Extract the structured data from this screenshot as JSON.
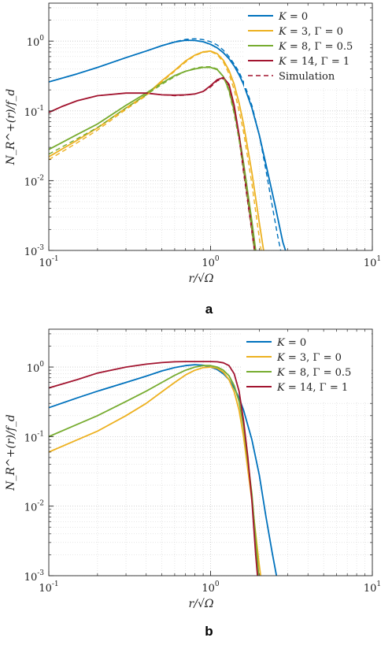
{
  "colors": {
    "K0": "#0072BD",
    "K3": "#EDB120",
    "K8": "#77AC30",
    "K14": "#A2142F"
  },
  "chart_data": [
    {
      "type": "line",
      "panel_label": "a",
      "xlabel": "r/√Ω",
      "ylabel": "N_R^+(r)/f_d",
      "xscale": "log",
      "yscale": "log",
      "xlim": [
        0.1,
        10
      ],
      "ylim": [
        0.001,
        3.5
      ],
      "xticks": [
        {
          "v": 0.1,
          "b": "10",
          "e": "-1"
        },
        {
          "v": 1,
          "b": "10",
          "e": "0"
        },
        {
          "v": 10,
          "b": "10",
          "e": "1"
        }
      ],
      "yticks": [
        {
          "v": 0.001,
          "b": "10",
          "e": "-3"
        },
        {
          "v": 0.01,
          "b": "10",
          "e": "-2"
        },
        {
          "v": 0.1,
          "b": "10",
          "e": "-1"
        },
        {
          "v": 1,
          "b": "10",
          "e": "0"
        }
      ],
      "grid": true,
      "legend": "top-right",
      "series": [
        {
          "name": "K = 0",
          "color_key": "K0",
          "dash": false,
          "x": [
            0.1,
            0.15,
            0.2,
            0.3,
            0.4,
            0.5,
            0.6,
            0.7,
            0.8,
            0.9,
            1.0,
            1.1,
            1.2,
            1.3,
            1.4,
            1.5,
            1.6,
            1.8,
            2.0,
            2.2,
            2.5,
            2.8,
            3.0
          ],
          "y": [
            0.26,
            0.34,
            0.42,
            0.58,
            0.72,
            0.86,
            0.97,
            1.03,
            1.02,
            0.98,
            0.9,
            0.8,
            0.68,
            0.56,
            0.44,
            0.33,
            0.24,
            0.11,
            0.045,
            0.017,
            0.0045,
            0.0013,
            0.0008
          ]
        },
        {
          "name": "K = 3, Γ = 0",
          "color_key": "K3",
          "dash": false,
          "x": [
            0.1,
            0.15,
            0.2,
            0.3,
            0.4,
            0.5,
            0.6,
            0.7,
            0.8,
            0.9,
            1.0,
            1.1,
            1.2,
            1.3,
            1.4,
            1.5,
            1.6,
            1.8,
            2.0,
            2.2
          ],
          "y": [
            0.022,
            0.038,
            0.057,
            0.11,
            0.17,
            0.27,
            0.38,
            0.52,
            0.63,
            0.7,
            0.72,
            0.66,
            0.53,
            0.38,
            0.24,
            0.13,
            0.065,
            0.013,
            0.0025,
            0.0006
          ]
        },
        {
          "name": "K = 8, Γ = 0.5",
          "color_key": "K8",
          "dash": false,
          "x": [
            0.1,
            0.15,
            0.2,
            0.3,
            0.4,
            0.5,
            0.6,
            0.7,
            0.8,
            0.9,
            1.0,
            1.1,
            1.2,
            1.3,
            1.4,
            1.5,
            1.6,
            1.8,
            2.0
          ],
          "y": [
            0.028,
            0.046,
            0.065,
            0.12,
            0.18,
            0.25,
            0.32,
            0.37,
            0.4,
            0.42,
            0.42,
            0.39,
            0.31,
            0.2,
            0.1,
            0.045,
            0.018,
            0.0026,
            0.0004
          ]
        },
        {
          "name": "K = 14, Γ = 1",
          "color_key": "K14",
          "dash": false,
          "x": [
            0.1,
            0.12,
            0.15,
            0.2,
            0.3,
            0.4,
            0.5,
            0.6,
            0.7,
            0.8,
            0.9,
            1.0,
            1.1,
            1.2,
            1.3,
            1.4,
            1.5,
            1.6,
            1.8,
            2.0
          ],
          "y": [
            0.095,
            0.115,
            0.14,
            0.165,
            0.18,
            0.18,
            0.17,
            0.168,
            0.17,
            0.175,
            0.19,
            0.23,
            0.28,
            0.3,
            0.24,
            0.12,
            0.045,
            0.015,
            0.002,
            0.0003
          ]
        },
        {
          "name": "Simulation",
          "color_key": "K14",
          "dash": true,
          "x": [
            0.1,
            0.12,
            0.15,
            0.2,
            0.3,
            0.4,
            0.5,
            0.6,
            0.7,
            0.8,
            0.9,
            1.0,
            1.1,
            1.2,
            1.3,
            1.4,
            1.5,
            1.6,
            1.8,
            2.0
          ],
          "y": [
            0.095,
            0.115,
            0.14,
            0.165,
            0.18,
            0.18,
            0.17,
            0.165,
            0.168,
            0.175,
            0.19,
            0.22,
            0.27,
            0.29,
            0.23,
            0.11,
            0.04,
            0.013,
            0.0018,
            0.0003
          ]
        },
        {
          "name": "",
          "color_key": "K0",
          "dash": true,
          "x": [
            0.1,
            0.15,
            0.2,
            0.3,
            0.4,
            0.5,
            0.6,
            0.7,
            0.8,
            0.9,
            1.0,
            1.1,
            1.2,
            1.3,
            1.4,
            1.5,
            1.6,
            1.8,
            2.0,
            2.2,
            2.4,
            2.6,
            2.8
          ],
          "y": [
            0.26,
            0.34,
            0.42,
            0.58,
            0.72,
            0.86,
            0.98,
            1.06,
            1.08,
            1.05,
            0.98,
            0.88,
            0.74,
            0.6,
            0.47,
            0.36,
            0.26,
            0.12,
            0.045,
            0.014,
            0.0045,
            0.0016,
            0.0007
          ]
        },
        {
          "name": "",
          "color_key": "K3",
          "dash": true,
          "x": [
            0.1,
            0.15,
            0.2,
            0.3,
            0.4,
            0.5,
            0.6,
            0.7,
            0.8,
            0.9,
            1.0,
            1.1,
            1.2,
            1.3,
            1.4,
            1.5,
            1.6,
            1.8,
            2.0,
            2.1
          ],
          "y": [
            0.02,
            0.035,
            0.053,
            0.105,
            0.165,
            0.26,
            0.37,
            0.5,
            0.62,
            0.69,
            0.71,
            0.64,
            0.5,
            0.34,
            0.2,
            0.1,
            0.05,
            0.009,
            0.0015,
            0.0007
          ]
        },
        {
          "name": "",
          "color_key": "K8",
          "dash": true,
          "x": [
            0.1,
            0.15,
            0.2,
            0.3,
            0.4,
            0.5,
            0.6,
            0.7,
            0.8,
            0.9,
            1.0,
            1.1,
            1.2,
            1.3,
            1.4,
            1.5,
            1.6,
            1.8,
            2.0
          ],
          "y": [
            0.024,
            0.04,
            0.058,
            0.11,
            0.17,
            0.24,
            0.31,
            0.37,
            0.41,
            0.43,
            0.43,
            0.4,
            0.31,
            0.19,
            0.09,
            0.038,
            0.015,
            0.002,
            0.0003
          ]
        }
      ],
      "legend_entries": [
        {
          "line": "K = ",
          "val": "0",
          "extra": "",
          "color_key": "K0",
          "dash": false
        },
        {
          "line": "K = ",
          "val": "3",
          "extra": ", Γ = 0",
          "color_key": "K3",
          "dash": false
        },
        {
          "line": "K = ",
          "val": "8",
          "extra": ", Γ = 0.5",
          "color_key": "K8",
          "dash": false
        },
        {
          "line": "K = ",
          "val": "14",
          "extra": ", Γ = 1",
          "color_key": "K14",
          "dash": false
        },
        {
          "line": "",
          "val": "Simulation",
          "extra": "",
          "color_key": "K14",
          "dash": true
        }
      ]
    },
    {
      "type": "line",
      "panel_label": "b",
      "xlabel": "r/√Ω",
      "ylabel": "N_R^+(r)/f_d",
      "xscale": "log",
      "yscale": "log",
      "xlim": [
        0.1,
        10
      ],
      "ylim": [
        0.001,
        3.5
      ],
      "xticks": [
        {
          "v": 0.1,
          "b": "10",
          "e": "-1"
        },
        {
          "v": 1,
          "b": "10",
          "e": "0"
        },
        {
          "v": 10,
          "b": "10",
          "e": "1"
        }
      ],
      "yticks": [
        {
          "v": 0.001,
          "b": "10",
          "e": "-3"
        },
        {
          "v": 0.01,
          "b": "10",
          "e": "-2"
        },
        {
          "v": 0.1,
          "b": "10",
          "e": "-1"
        },
        {
          "v": 1,
          "b": "10",
          "e": "0"
        }
      ],
      "grid": true,
      "legend": "top-right",
      "series": [
        {
          "name": "K = 0",
          "color_key": "K0",
          "dash": false,
          "x": [
            0.1,
            0.15,
            0.2,
            0.3,
            0.4,
            0.5,
            0.6,
            0.7,
            0.8,
            0.9,
            1.0,
            1.1,
            1.2,
            1.3,
            1.4,
            1.5,
            1.6,
            1.8,
            2.0,
            2.2,
            2.4,
            2.6
          ],
          "y": [
            0.26,
            0.36,
            0.45,
            0.6,
            0.74,
            0.88,
            0.98,
            1.05,
            1.08,
            1.06,
            1.0,
            0.92,
            0.8,
            0.66,
            0.5,
            0.36,
            0.24,
            0.09,
            0.028,
            0.007,
            0.0022,
            0.0008
          ]
        },
        {
          "name": "K = 3, Γ = 0",
          "color_key": "K3",
          "dash": false,
          "x": [
            0.1,
            0.15,
            0.2,
            0.3,
            0.4,
            0.5,
            0.6,
            0.7,
            0.8,
            0.9,
            1.0,
            1.1,
            1.2,
            1.3,
            1.4,
            1.5,
            1.6,
            1.8,
            2.0,
            2.1
          ],
          "y": [
            0.06,
            0.09,
            0.12,
            0.2,
            0.3,
            0.44,
            0.6,
            0.77,
            0.9,
            0.98,
            1.0,
            0.96,
            0.84,
            0.66,
            0.44,
            0.24,
            0.1,
            0.012,
            0.0014,
            0.0006
          ]
        },
        {
          "name": "K = 8, Γ = 0.5",
          "color_key": "K8",
          "dash": false,
          "x": [
            0.1,
            0.15,
            0.2,
            0.3,
            0.4,
            0.5,
            0.6,
            0.7,
            0.8,
            0.9,
            1.0,
            1.1,
            1.2,
            1.3,
            1.4,
            1.5,
            1.6,
            1.8,
            2.0
          ],
          "y": [
            0.1,
            0.15,
            0.2,
            0.32,
            0.45,
            0.6,
            0.76,
            0.9,
            1.0,
            1.05,
            1.05,
            1.0,
            0.9,
            0.75,
            0.54,
            0.32,
            0.14,
            0.015,
            0.0008
          ]
        },
        {
          "name": "K = 14, Γ = 1",
          "color_key": "K14",
          "dash": false,
          "x": [
            0.1,
            0.15,
            0.2,
            0.3,
            0.4,
            0.5,
            0.6,
            0.7,
            0.8,
            0.9,
            1.0,
            1.1,
            1.2,
            1.3,
            1.4,
            1.5,
            1.6,
            1.7,
            1.8,
            1.9,
            2.0
          ],
          "y": [
            0.5,
            0.66,
            0.82,
            1.0,
            1.1,
            1.16,
            1.19,
            1.2,
            1.2,
            1.2,
            1.2,
            1.19,
            1.15,
            1.05,
            0.8,
            0.45,
            0.17,
            0.05,
            0.012,
            0.002,
            0.0005
          ]
        }
      ],
      "legend_entries": [
        {
          "line": "K = ",
          "val": "0",
          "extra": "",
          "color_key": "K0",
          "dash": false
        },
        {
          "line": "K = ",
          "val": "3",
          "extra": ", Γ = 0",
          "color_key": "K3",
          "dash": false
        },
        {
          "line": "K = ",
          "val": "8",
          "extra": ", Γ = 0.5",
          "color_key": "K8",
          "dash": false
        },
        {
          "line": "K = ",
          "val": "14",
          "extra": ", Γ = 1",
          "color_key": "K14",
          "dash": false
        }
      ]
    }
  ]
}
